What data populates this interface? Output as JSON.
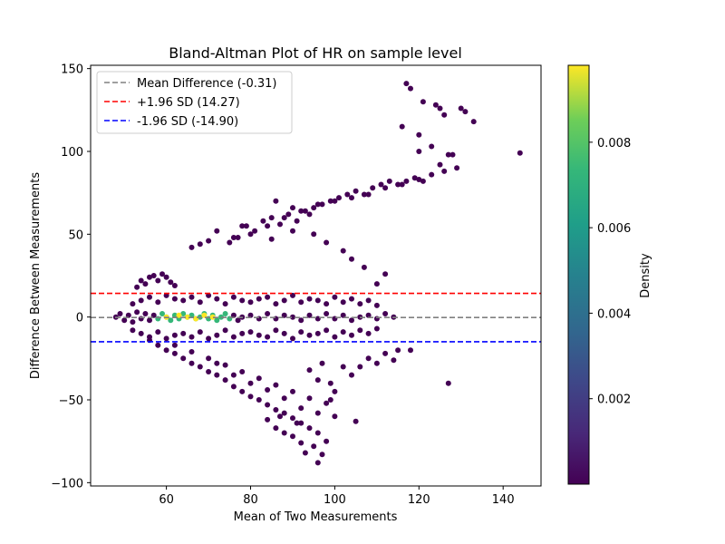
{
  "chart_data": {
    "type": "scatter",
    "title": "Bland-Altman Plot of HR on sample level",
    "xlabel": "Mean of Two Measurements",
    "ylabel": "Difference Between Measurements",
    "xlim": [
      42,
      149
    ],
    "ylim": [
      -102,
      152
    ],
    "xticks": [
      60,
      80,
      100,
      120,
      140
    ],
    "yticks": [
      -100,
      -50,
      0,
      50,
      100,
      150
    ],
    "grid": false,
    "legend_position": "upper-left",
    "reference_lines": [
      {
        "label": "Mean Difference (-0.31)",
        "y": -0.31,
        "color": "#808080",
        "style": "dashed"
      },
      {
        "label": "+1.96 SD (14.27)",
        "y": 14.27,
        "color": "#ff0000",
        "style": "dashed"
      },
      {
        "label": "-1.96 SD (-14.90)",
        "y": -14.9,
        "color": "#0000ff",
        "style": "dashed"
      }
    ],
    "colorbar": {
      "label": "Density",
      "colormap": "viridis",
      "range": [
        0.0,
        0.0098
      ],
      "ticks": [
        "0.002",
        "0.004",
        "0.006",
        "0.008"
      ],
      "tick_values": [
        0.002,
        0.004,
        0.006,
        0.008
      ]
    },
    "point_color_low": "#440154",
    "point_color_high": "#fde725",
    "points": [
      [
        48,
        0
      ],
      [
        49,
        2
      ],
      [
        50,
        -2
      ],
      [
        51,
        1
      ],
      [
        52,
        -3
      ],
      [
        53,
        3
      ],
      [
        54,
        -1
      ],
      [
        55,
        2
      ],
      [
        56,
        -2
      ],
      [
        57,
        1
      ],
      [
        58,
        -1
      ],
      [
        59,
        2
      ],
      [
        60,
        0
      ],
      [
        61,
        -2
      ],
      [
        62,
        1
      ],
      [
        63,
        -1
      ],
      [
        64,
        2
      ],
      [
        65,
        0
      ],
      [
        66,
        1
      ],
      [
        67,
        -1
      ],
      [
        68,
        0
      ],
      [
        69,
        2
      ],
      [
        70,
        -1
      ],
      [
        71,
        1
      ],
      [
        72,
        -2
      ],
      [
        73,
        0
      ],
      [
        74,
        2
      ],
      [
        75,
        -1
      ],
      [
        76,
        1
      ],
      [
        77,
        -2
      ],
      [
        78,
        0
      ],
      [
        80,
        1
      ],
      [
        82,
        -1
      ],
      [
        84,
        2
      ],
      [
        86,
        -1
      ],
      [
        88,
        1
      ],
      [
        90,
        0
      ],
      [
        92,
        -2
      ],
      [
        94,
        1
      ],
      [
        96,
        -1
      ],
      [
        98,
        2
      ],
      [
        100,
        -1
      ],
      [
        102,
        1
      ],
      [
        104,
        -2
      ],
      [
        106,
        0
      ],
      [
        108,
        1
      ],
      [
        110,
        -1
      ],
      [
        112,
        2
      ],
      [
        114,
        0
      ],
      [
        52,
        8
      ],
      [
        54,
        10
      ],
      [
        56,
        12
      ],
      [
        58,
        9
      ],
      [
        60,
        13
      ],
      [
        62,
        11
      ],
      [
        64,
        10
      ],
      [
        66,
        12
      ],
      [
        68,
        9
      ],
      [
        70,
        13
      ],
      [
        72,
        11
      ],
      [
        74,
        8
      ],
      [
        76,
        12
      ],
      [
        78,
        10
      ],
      [
        80,
        9
      ],
      [
        82,
        11
      ],
      [
        84,
        12
      ],
      [
        86,
        8
      ],
      [
        88,
        10
      ],
      [
        90,
        13
      ],
      [
        92,
        9
      ],
      [
        94,
        11
      ],
      [
        96,
        10
      ],
      [
        98,
        8
      ],
      [
        100,
        12
      ],
      [
        102,
        9
      ],
      [
        104,
        11
      ],
      [
        106,
        8
      ],
      [
        108,
        10
      ],
      [
        110,
        7
      ],
      [
        52,
        -8
      ],
      [
        54,
        -10
      ],
      [
        56,
        -12
      ],
      [
        58,
        -9
      ],
      [
        60,
        -13
      ],
      [
        62,
        -11
      ],
      [
        64,
        -10
      ],
      [
        66,
        -12
      ],
      [
        68,
        -9
      ],
      [
        70,
        -13
      ],
      [
        72,
        -11
      ],
      [
        74,
        -8
      ],
      [
        76,
        -12
      ],
      [
        78,
        -10
      ],
      [
        80,
        -9
      ],
      [
        82,
        -11
      ],
      [
        84,
        -12
      ],
      [
        86,
        -8
      ],
      [
        88,
        -10
      ],
      [
        90,
        -13
      ],
      [
        92,
        -9
      ],
      [
        94,
        -11
      ],
      [
        96,
        -10
      ],
      [
        98,
        -8
      ],
      [
        100,
        -12
      ],
      [
        102,
        -9
      ],
      [
        104,
        -11
      ],
      [
        106,
        -8
      ],
      [
        108,
        -10
      ],
      [
        110,
        -7
      ],
      [
        53,
        18
      ],
      [
        54,
        22
      ],
      [
        55,
        20
      ],
      [
        56,
        24
      ],
      [
        57,
        25
      ],
      [
        58,
        22
      ],
      [
        59,
        26
      ],
      [
        60,
        24
      ],
      [
        61,
        21
      ],
      [
        62,
        19
      ],
      [
        56,
        -14
      ],
      [
        58,
        -17
      ],
      [
        60,
        -20
      ],
      [
        62,
        -22
      ],
      [
        64,
        -25
      ],
      [
        66,
        -28
      ],
      [
        68,
        -30
      ],
      [
        70,
        -33
      ],
      [
        72,
        -35
      ],
      [
        74,
        -38
      ],
      [
        76,
        -42
      ],
      [
        78,
        -45
      ],
      [
        80,
        -48
      ],
      [
        82,
        -50
      ],
      [
        84,
        -53
      ],
      [
        86,
        -56
      ],
      [
        88,
        -58
      ],
      [
        90,
        -61
      ],
      [
        92,
        -64
      ],
      [
        94,
        -67
      ],
      [
        96,
        -70
      ],
      [
        98,
        -75
      ],
      [
        62,
        -17
      ],
      [
        66,
        -21
      ],
      [
        70,
        -25
      ],
      [
        74,
        -29
      ],
      [
        78,
        -33
      ],
      [
        82,
        -37
      ],
      [
        86,
        -41
      ],
      [
        90,
        -45
      ],
      [
        94,
        -49
      ],
      [
        98,
        -52
      ],
      [
        72,
        -28
      ],
      [
        76,
        -35
      ],
      [
        80,
        -40
      ],
      [
        84,
        -44
      ],
      [
        88,
        -49
      ],
      [
        92,
        -55
      ],
      [
        96,
        -58
      ],
      [
        100,
        -60
      ],
      [
        105,
        -63
      ],
      [
        99,
        -50
      ],
      [
        95,
        -78
      ],
      [
        97,
        -83
      ],
      [
        96,
        -88
      ],
      [
        93,
        -82
      ],
      [
        90,
        -72
      ],
      [
        86,
        -67
      ],
      [
        84,
        -62
      ],
      [
        88,
        -70
      ],
      [
        92,
        -76
      ],
      [
        91,
        -64
      ],
      [
        87,
        -60
      ],
      [
        108,
        -25
      ],
      [
        106,
        -30
      ],
      [
        110,
        -28
      ],
      [
        112,
        -22
      ],
      [
        115,
        -20
      ],
      [
        104,
        -35
      ],
      [
        102,
        -30
      ],
      [
        99,
        -40
      ],
      [
        100,
        -45
      ],
      [
        96,
        -38
      ],
      [
        94,
        -32
      ],
      [
        97,
        -28
      ],
      [
        118,
        -20
      ],
      [
        114,
        -26
      ],
      [
        127,
        -40
      ],
      [
        75,
        45
      ],
      [
        77,
        48
      ],
      [
        79,
        55
      ],
      [
        81,
        52
      ],
      [
        83,
        58
      ],
      [
        85,
        60
      ],
      [
        87,
        56
      ],
      [
        89,
        62
      ],
      [
        91,
        58
      ],
      [
        93,
        64
      ],
      [
        95,
        66
      ],
      [
        97,
        68
      ],
      [
        99,
        70
      ],
      [
        101,
        72
      ],
      [
        103,
        74
      ],
      [
        105,
        76
      ],
      [
        107,
        74
      ],
      [
        109,
        78
      ],
      [
        111,
        80
      ],
      [
        113,
        82
      ],
      [
        115,
        80
      ],
      [
        117,
        82
      ],
      [
        119,
        84
      ],
      [
        121,
        82
      ],
      [
        123,
        86
      ],
      [
        125,
        92
      ],
      [
        127,
        98
      ],
      [
        90,
        66
      ],
      [
        92,
        64
      ],
      [
        94,
        62
      ],
      [
        96,
        68
      ],
      [
        100,
        70
      ],
      [
        104,
        72
      ],
      [
        108,
        74
      ],
      [
        112,
        78
      ],
      [
        116,
        80
      ],
      [
        120,
        83
      ],
      [
        86,
        70
      ],
      [
        88,
        60
      ],
      [
        84,
        55
      ],
      [
        80,
        50
      ],
      [
        78,
        55
      ],
      [
        76,
        48
      ],
      [
        72,
        52
      ],
      [
        70,
        46
      ],
      [
        68,
        44
      ],
      [
        66,
        42
      ],
      [
        85,
        47
      ],
      [
        90,
        52
      ],
      [
        95,
        50
      ],
      [
        98,
        45
      ],
      [
        102,
        40
      ],
      [
        104,
        35
      ],
      [
        107,
        30
      ],
      [
        110,
        20
      ],
      [
        112,
        26
      ],
      [
        117,
        141
      ],
      [
        118,
        138
      ],
      [
        121,
        130
      ],
      [
        124,
        128
      ],
      [
        125,
        126
      ],
      [
        130,
        126
      ],
      [
        131,
        124
      ],
      [
        133,
        118
      ],
      [
        126,
        122
      ],
      [
        120,
        110
      ],
      [
        116,
        115
      ],
      [
        123,
        103
      ],
      [
        128,
        98
      ],
      [
        129,
        90
      ],
      [
        126,
        88
      ],
      [
        144,
        99
      ],
      [
        120,
        100
      ]
    ]
  }
}
